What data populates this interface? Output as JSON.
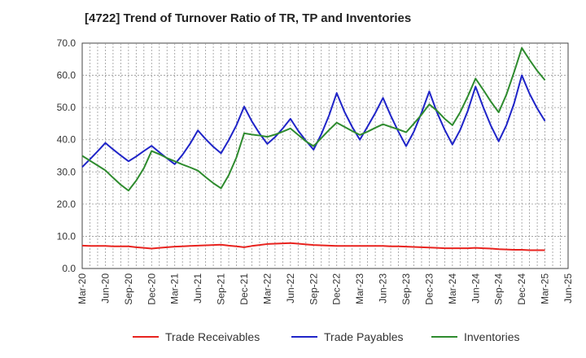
{
  "chart_data": {
    "type": "line",
    "title": "[4722]  Trend of Turnover Ratio of TR, TP and Inventories",
    "xlabel": "",
    "ylabel": "",
    "ylim": [
      0,
      70
    ],
    "y_ticks": [
      "0.0",
      "10.0",
      "20.0",
      "30.0",
      "40.0",
      "50.0",
      "60.0",
      "70.0"
    ],
    "x_tick_labels": [
      "Mar-20",
      "Jun-20",
      "Sep-20",
      "Dec-20",
      "Mar-21",
      "Jun-21",
      "Sep-21",
      "Dec-21",
      "Mar-22",
      "Jun-22",
      "Sep-22",
      "Dec-22",
      "Mar-23",
      "Jun-23",
      "Sep-23",
      "Dec-23",
      "Mar-24",
      "Jun-24",
      "Sep-24",
      "Dec-24",
      "Mar-25",
      "Jun-25"
    ],
    "x": [
      "Mar-20",
      "Apr-20",
      "May-20",
      "Jun-20",
      "Jul-20",
      "Aug-20",
      "Sep-20",
      "Oct-20",
      "Nov-20",
      "Dec-20",
      "Jan-21",
      "Feb-21",
      "Mar-21",
      "Apr-21",
      "May-21",
      "Jun-21",
      "Jul-21",
      "Aug-21",
      "Sep-21",
      "Oct-21",
      "Nov-21",
      "Dec-21",
      "Jan-22",
      "Feb-22",
      "Mar-22",
      "Apr-22",
      "May-22",
      "Jun-22",
      "Jul-22",
      "Aug-22",
      "Sep-22",
      "Oct-22",
      "Nov-22",
      "Dec-22",
      "Jan-23",
      "Feb-23",
      "Mar-23",
      "Apr-23",
      "May-23",
      "Jun-23",
      "Jul-23",
      "Aug-23",
      "Sep-23",
      "Oct-23",
      "Nov-23",
      "Dec-23",
      "Jan-24",
      "Feb-24",
      "Mar-24",
      "Apr-24",
      "May-24",
      "Jun-24",
      "Jul-24",
      "Aug-24",
      "Sep-24",
      "Oct-24",
      "Nov-24",
      "Dec-24",
      "Jan-25",
      "Feb-25",
      "Mar-25"
    ],
    "grid": true,
    "legend_position": "bottom",
    "series": [
      {
        "name": "Trade Receivables",
        "color": "#e8231f",
        "values": [
          7.1,
          7.0,
          7.0,
          7.0,
          6.9,
          6.9,
          6.9,
          6.6,
          6.4,
          6.2,
          6.4,
          6.6,
          6.8,
          6.9,
          7.0,
          7.1,
          7.2,
          7.3,
          7.4,
          7.1,
          6.9,
          6.6,
          7.0,
          7.3,
          7.6,
          7.7,
          7.8,
          7.9,
          7.7,
          7.5,
          7.3,
          7.2,
          7.1,
          7.0,
          7.0,
          7.0,
          7.0,
          7.0,
          7.0,
          7.0,
          6.9,
          6.9,
          6.8,
          6.7,
          6.6,
          6.5,
          6.4,
          6.3,
          6.3,
          6.3,
          6.3,
          6.4,
          6.3,
          6.2,
          6.0,
          5.9,
          5.8,
          5.8,
          5.7,
          5.7,
          5.7
        ]
      },
      {
        "name": "Trade Payables",
        "color": "#1f24c8",
        "values": [
          31.5,
          33.9,
          36.4,
          39.0,
          37.0,
          35.1,
          33.3,
          34.8,
          36.5,
          38.1,
          36.1,
          34.2,
          32.4,
          35.3,
          38.8,
          42.9,
          40.2,
          37.8,
          35.8,
          39.9,
          44.5,
          50.3,
          45.7,
          41.9,
          38.7,
          40.8,
          43.5,
          46.5,
          42.8,
          39.7,
          36.9,
          41.7,
          47.5,
          54.5,
          48.7,
          44.0,
          40.0,
          44.1,
          48.3,
          53.0,
          47.5,
          42.5,
          38.0,
          42.5,
          48.4,
          55.0,
          48.5,
          43.1,
          38.5,
          43.0,
          49.0,
          56.5,
          50.1,
          44.3,
          39.5,
          44.5,
          51.3,
          60.0,
          54.3,
          49.7,
          45.8
        ]
      },
      {
        "name": "Inventories",
        "color": "#2e8b2e",
        "values": [
          35.0,
          33.5,
          32.0,
          30.5,
          28.2,
          26.0,
          24.2,
          27.3,
          31.2,
          36.5,
          35.5,
          34.3,
          33.3,
          32.3,
          31.4,
          30.4,
          28.4,
          26.5,
          24.9,
          29.0,
          34.5,
          42.0,
          41.6,
          41.3,
          40.9,
          41.6,
          42.5,
          43.5,
          41.5,
          39.5,
          38.0,
          40.5,
          43.0,
          45.3,
          44.0,
          42.7,
          41.5,
          42.5,
          43.7,
          44.8,
          44.0,
          43.2,
          42.3,
          45.0,
          47.8,
          51.0,
          49.0,
          46.5,
          44.5,
          48.5,
          53.5,
          59.0,
          55.5,
          51.8,
          48.5,
          54.0,
          61.0,
          68.5,
          64.8,
          61.4,
          58.5
        ]
      }
    ]
  }
}
